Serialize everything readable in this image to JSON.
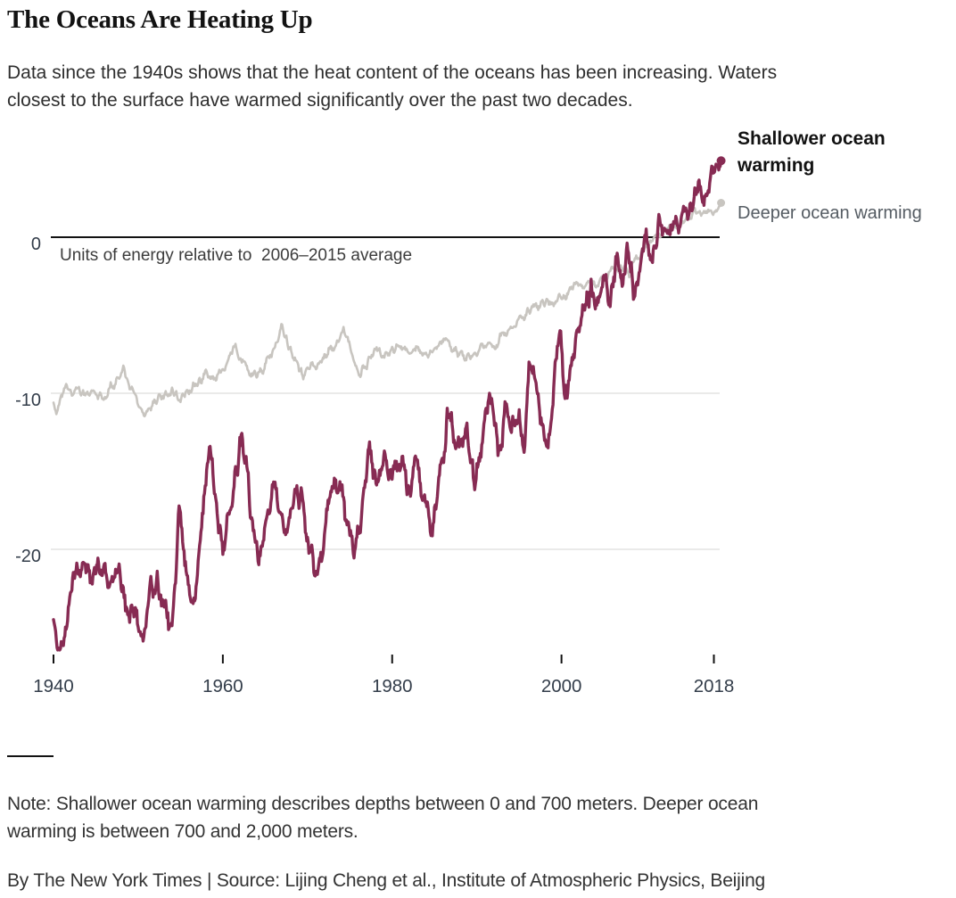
{
  "header": {
    "title": "The Oceans Are Heating Up",
    "subtitle_lines": [
      "Data since the 1940s shows that the heat content of the oceans has been increasing. Waters",
      "closest to the surface have warmed significantly over the past two decades."
    ]
  },
  "chart_data": {
    "type": "line",
    "title": "",
    "unit_note": "Units of energy relative to  2006–2015 average",
    "x_range": [
      1940,
      2019
    ],
    "y_range": [
      -27,
      5.5
    ],
    "grid": "partial-horizontal",
    "legend_position": "right",
    "x_ticks": [
      {
        "year": 1940,
        "label": "1940"
      },
      {
        "year": 1960,
        "label": "1960"
      },
      {
        "year": 1980,
        "label": "1980"
      },
      {
        "year": 2000,
        "label": "2000"
      },
      {
        "year": 2018,
        "label": "2018"
      }
    ],
    "y_ticks": [
      {
        "value": 0,
        "label": "0"
      },
      {
        "value": -10,
        "label": "-10"
      },
      {
        "value": -20,
        "label": "-20"
      }
    ],
    "colors": {
      "shallow_line": "#872b53",
      "deep_line": "#c8c5c0",
      "zero_line": "#121212",
      "grid_line": "#e4e4e2",
      "axis_label": "#333d4a"
    },
    "legend": {
      "primary_lines": [
        "Shallower ocean",
        "warming"
      ],
      "secondary": "Deeper ocean warming"
    },
    "series": [
      {
        "name": "Deeper ocean warming",
        "color": "#c8c5c0",
        "stroke_width": 2.6,
        "end_dot_radius": 4.5,
        "noise_amp": 0.3,
        "seed": 5,
        "points": [
          [
            1940.0,
            -10.6
          ],
          [
            1940.3,
            -11.4
          ],
          [
            1941.0,
            -9.9
          ],
          [
            1941.6,
            -9.6
          ],
          [
            1942.2,
            -10.1
          ],
          [
            1943.0,
            -9.7
          ],
          [
            1944.0,
            -10.1
          ],
          [
            1945.0,
            -9.9
          ],
          [
            1946.0,
            -10.2
          ],
          [
            1947.0,
            -9.5
          ],
          [
            1948.3,
            -8.5
          ],
          [
            1949.2,
            -9.8
          ],
          [
            1950.0,
            -10.8
          ],
          [
            1950.7,
            -11.4
          ],
          [
            1951.5,
            -10.9
          ],
          [
            1952.3,
            -10.3
          ],
          [
            1953.2,
            -10.1
          ],
          [
            1954.1,
            -9.9
          ],
          [
            1955.0,
            -10.4
          ],
          [
            1956.0,
            -9.7
          ],
          [
            1957.0,
            -9.4
          ],
          [
            1958.0,
            -8.8
          ],
          [
            1959.0,
            -9.3
          ],
          [
            1960.0,
            -8.5
          ],
          [
            1961.3,
            -6.9
          ],
          [
            1962.1,
            -7.7
          ],
          [
            1963.0,
            -8.5
          ],
          [
            1964.0,
            -8.9
          ],
          [
            1965.0,
            -8.3
          ],
          [
            1966.0,
            -7.1
          ],
          [
            1966.9,
            -5.8
          ],
          [
            1967.6,
            -6.7
          ],
          [
            1968.4,
            -7.7
          ],
          [
            1969.5,
            -8.8
          ],
          [
            1970.5,
            -8.1
          ],
          [
            1971.2,
            -8.4
          ],
          [
            1972.2,
            -7.5
          ],
          [
            1973.2,
            -6.8
          ],
          [
            1974.3,
            -6.1
          ],
          [
            1975.2,
            -7.3
          ],
          [
            1976.2,
            -8.8
          ],
          [
            1977.1,
            -8.0
          ],
          [
            1978.0,
            -7.3
          ],
          [
            1979.0,
            -7.6
          ],
          [
            1980.0,
            -7.2
          ],
          [
            1981.0,
            -6.9
          ],
          [
            1982.0,
            -7.5
          ],
          [
            1983.0,
            -7.0
          ],
          [
            1984.0,
            -7.5
          ],
          [
            1985.0,
            -7.2
          ],
          [
            1986.2,
            -6.4
          ],
          [
            1987.0,
            -7.1
          ],
          [
            1988.0,
            -7.4
          ],
          [
            1989.0,
            -7.7
          ],
          [
            1990.0,
            -7.3
          ],
          [
            1991.0,
            -6.8
          ],
          [
            1992.0,
            -7.1
          ],
          [
            1993.0,
            -6.3
          ],
          [
            1994.0,
            -5.8
          ],
          [
            1995.0,
            -5.3
          ],
          [
            1996.0,
            -4.8
          ],
          [
            1997.0,
            -4.4
          ],
          [
            1998.0,
            -4.1
          ],
          [
            1999.0,
            -4.3
          ],
          [
            2000.0,
            -3.8
          ],
          [
            2001.0,
            -3.4
          ],
          [
            2002.0,
            -3.1
          ],
          [
            2003.0,
            -2.9
          ],
          [
            2004.0,
            -3.0
          ],
          [
            2005.0,
            -2.6
          ],
          [
            2006.0,
            -2.2
          ],
          [
            2007.0,
            -2.0
          ],
          [
            2008.0,
            -2.2
          ],
          [
            2009.0,
            -1.3
          ],
          [
            2010.0,
            -0.6
          ],
          [
            2011.0,
            0.0
          ],
          [
            2012.0,
            0.4
          ],
          [
            2012.7,
            0.8
          ],
          [
            2013.5,
            0.6
          ],
          [
            2014.2,
            0.9
          ],
          [
            2015.0,
            1.3
          ],
          [
            2016.0,
            1.7
          ],
          [
            2016.6,
            1.4
          ],
          [
            2017.3,
            1.7
          ],
          [
            2017.8,
            1.5
          ],
          [
            2018.3,
            1.9
          ],
          [
            2018.85,
            2.2
          ]
        ]
      },
      {
        "name": "Shallower ocean warming",
        "color": "#872b53",
        "stroke_width": 3.4,
        "end_dot_radius": 5,
        "noise_amp": 0.85,
        "seed": 13,
        "points": [
          [
            1940.0,
            -24.5
          ],
          [
            1940.5,
            -26.0
          ],
          [
            1941.1,
            -25.2
          ],
          [
            1942.0,
            -23.2
          ],
          [
            1942.6,
            -21.6
          ],
          [
            1943.5,
            -20.6
          ],
          [
            1944.3,
            -21.8
          ],
          [
            1945.0,
            -21.2
          ],
          [
            1945.8,
            -21.0
          ],
          [
            1946.5,
            -21.8
          ],
          [
            1947.3,
            -20.8
          ],
          [
            1948.2,
            -22.6
          ],
          [
            1949.0,
            -24.2
          ],
          [
            1949.6,
            -23.2
          ],
          [
            1950.5,
            -25.6
          ],
          [
            1951.3,
            -22.8
          ],
          [
            1952.2,
            -21.8
          ],
          [
            1953.0,
            -23.2
          ],
          [
            1953.7,
            -26.0
          ],
          [
            1954.4,
            -21.5
          ],
          [
            1954.9,
            -16.8
          ],
          [
            1955.6,
            -20.8
          ],
          [
            1956.2,
            -24.3
          ],
          [
            1957.0,
            -22.0
          ],
          [
            1957.7,
            -17.5
          ],
          [
            1958.5,
            -13.6
          ],
          [
            1959.3,
            -17.8
          ],
          [
            1960.1,
            -19.8
          ],
          [
            1960.9,
            -16.8
          ],
          [
            1961.6,
            -14.8
          ],
          [
            1962.3,
            -13.2
          ],
          [
            1963.1,
            -16.5
          ],
          [
            1964.2,
            -20.5
          ],
          [
            1965.1,
            -18.2
          ],
          [
            1966.3,
            -15.9
          ],
          [
            1967.5,
            -19.2
          ],
          [
            1968.4,
            -17.2
          ],
          [
            1969.1,
            -16.3
          ],
          [
            1970.0,
            -18.8
          ],
          [
            1971.0,
            -21.4
          ],
          [
            1972.0,
            -19.2
          ],
          [
            1972.8,
            -16.8
          ],
          [
            1973.7,
            -15.3
          ],
          [
            1974.5,
            -17.8
          ],
          [
            1975.5,
            -20.2
          ],
          [
            1976.4,
            -18.3
          ],
          [
            1977.2,
            -13.4
          ],
          [
            1978.1,
            -15.8
          ],
          [
            1979.0,
            -14.4
          ],
          [
            1980.0,
            -15.6
          ],
          [
            1981.0,
            -13.9
          ],
          [
            1982.0,
            -16.2
          ],
          [
            1983.0,
            -14.2
          ],
          [
            1983.8,
            -17.2
          ],
          [
            1984.6,
            -19.0
          ],
          [
            1985.5,
            -15.6
          ],
          [
            1986.7,
            -11.4
          ],
          [
            1987.6,
            -13.6
          ],
          [
            1988.8,
            -12.1
          ],
          [
            1989.7,
            -16.3
          ],
          [
            1990.6,
            -13.6
          ],
          [
            1991.4,
            -9.6
          ],
          [
            1992.1,
            -11.7
          ],
          [
            1992.8,
            -13.8
          ],
          [
            1993.3,
            -10.3
          ],
          [
            1994.1,
            -12.1
          ],
          [
            1995.0,
            -11.2
          ],
          [
            1995.6,
            -13.2
          ],
          [
            1996.2,
            -8.6
          ],
          [
            1996.8,
            -9.6
          ],
          [
            1997.4,
            -10.8
          ],
          [
            1998.4,
            -13.0
          ],
          [
            1999.2,
            -9.2
          ],
          [
            1999.8,
            -6.4
          ],
          [
            2000.4,
            -9.8
          ],
          [
            2001.2,
            -8.8
          ],
          [
            2002.2,
            -5.3
          ],
          [
            2003.4,
            -3.5
          ],
          [
            2004.1,
            -4.5
          ],
          [
            2005.0,
            -2.7
          ],
          [
            2005.7,
            -4.0
          ],
          [
            2006.4,
            -1.6
          ],
          [
            2007.1,
            -2.6
          ],
          [
            2007.8,
            -0.7
          ],
          [
            2008.5,
            -3.7
          ],
          [
            2009.5,
            -1.3
          ],
          [
            2010.1,
            -0.4
          ],
          [
            2010.7,
            -1.1
          ],
          [
            2011.4,
            0.6
          ],
          [
            2012.0,
            0.2
          ],
          [
            2012.5,
            -0.3
          ],
          [
            2013.4,
            1.8
          ],
          [
            2014.0,
            0.8
          ],
          [
            2014.8,
            2.5
          ],
          [
            2015.4,
            1.4
          ],
          [
            2016.2,
            3.6
          ],
          [
            2016.9,
            2.2
          ],
          [
            2017.7,
            4.2
          ],
          [
            2018.2,
            3.6
          ],
          [
            2018.85,
            4.9
          ]
        ]
      }
    ]
  },
  "footer": {
    "note_lines": [
      "Note: Shallower ocean warming describes depths between 0 and 700 meters. Deeper ocean",
      "warming is between 700 and 2,000 meters."
    ],
    "credit": "By The New York Times | Source: Lijing Cheng et al., Institute of Atmospheric Physics, Beijing"
  }
}
